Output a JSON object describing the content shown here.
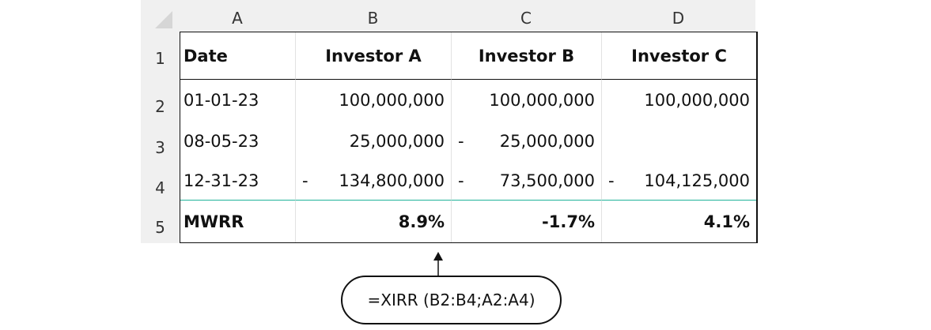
{
  "columns": [
    "A",
    "B",
    "C",
    "D"
  ],
  "rows": [
    "1",
    "2",
    "3",
    "4",
    "5"
  ],
  "header": {
    "date": "Date",
    "a": "Investor A",
    "b": "Investor B",
    "c": "Investor C"
  },
  "data": [
    {
      "date": "01-01-23",
      "a": "100,000,000",
      "b": "100,000,000",
      "c": "100,000,000"
    },
    {
      "date": "08-05-23",
      "a": "25,000,000",
      "b_sign": "-",
      "b": "25,000,000",
      "c": ""
    },
    {
      "date": "12-31-23",
      "a_sign": "-",
      "a": "134,800,000",
      "b_sign": "-",
      "b": "73,500,000",
      "c_sign": "-",
      "c": "104,125,000"
    }
  ],
  "summary": {
    "label": "MWRR",
    "a": "8.9%",
    "b": "-1.7%",
    "c": "4.1%"
  },
  "formula": "=XIRR (B2:B4;A2:A4)"
}
